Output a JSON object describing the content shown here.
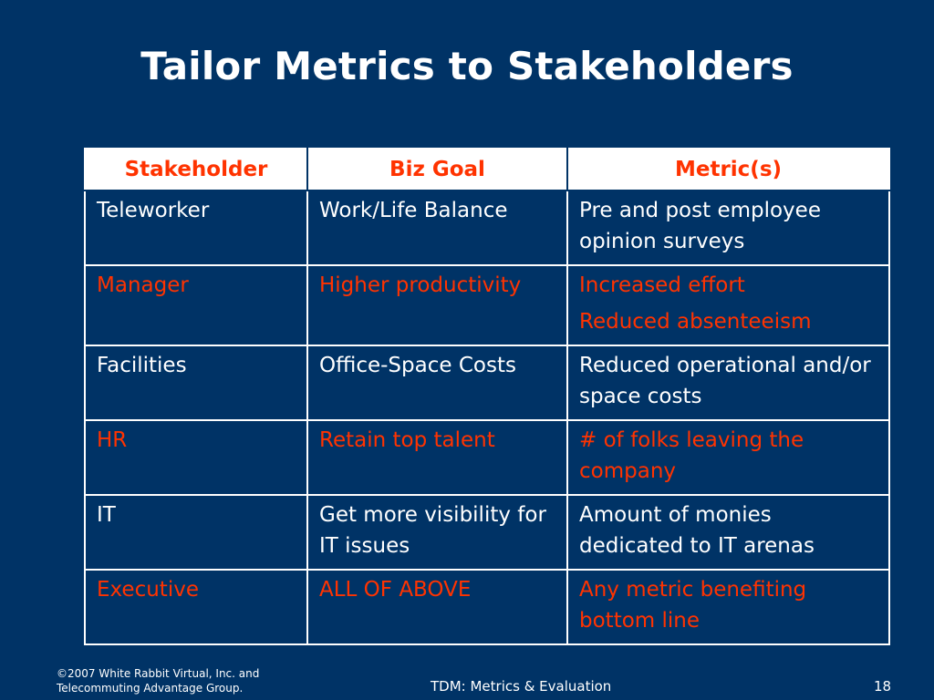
{
  "slide": {
    "title": "Tailor Metrics to Stakeholders",
    "colors": {
      "background": "#003366",
      "accent": "#ff3300",
      "text": "#ffffff"
    }
  },
  "table": {
    "headers": [
      "Stakeholder",
      "Biz Goal",
      "Metric(s)"
    ],
    "rows": [
      {
        "stakeholder": "Teleworker",
        "goal": "Work/Life Balance",
        "metrics": [
          "Pre and post employee opinion surveys"
        ]
      },
      {
        "stakeholder": "Manager",
        "goal": "Higher productivity",
        "metrics": [
          "Increased effort",
          "Reduced absenteeism"
        ]
      },
      {
        "stakeholder": "Facilities",
        "goal": "Office-Space Costs",
        "metrics": [
          "Reduced operational and/or space costs"
        ]
      },
      {
        "stakeholder": "HR",
        "goal": "Retain top talent",
        "metrics": [
          "# of folks leaving the company"
        ]
      },
      {
        "stakeholder": "IT",
        "goal": "Get more visibility for IT issues",
        "metrics": [
          "Amount of monies dedicated to IT arenas"
        ]
      },
      {
        "stakeholder": "Executive",
        "goal": "ALL OF ABOVE",
        "metrics": [
          "Any metric benefiting bottom line"
        ]
      }
    ]
  },
  "footer": {
    "copyright_line1": "©2007 White Rabbit Virtual, Inc. and",
    "copyright_line2": "Telecommuting Advantage Group.",
    "center": "TDM: Metrics & Evaluation",
    "page_number": "18"
  }
}
